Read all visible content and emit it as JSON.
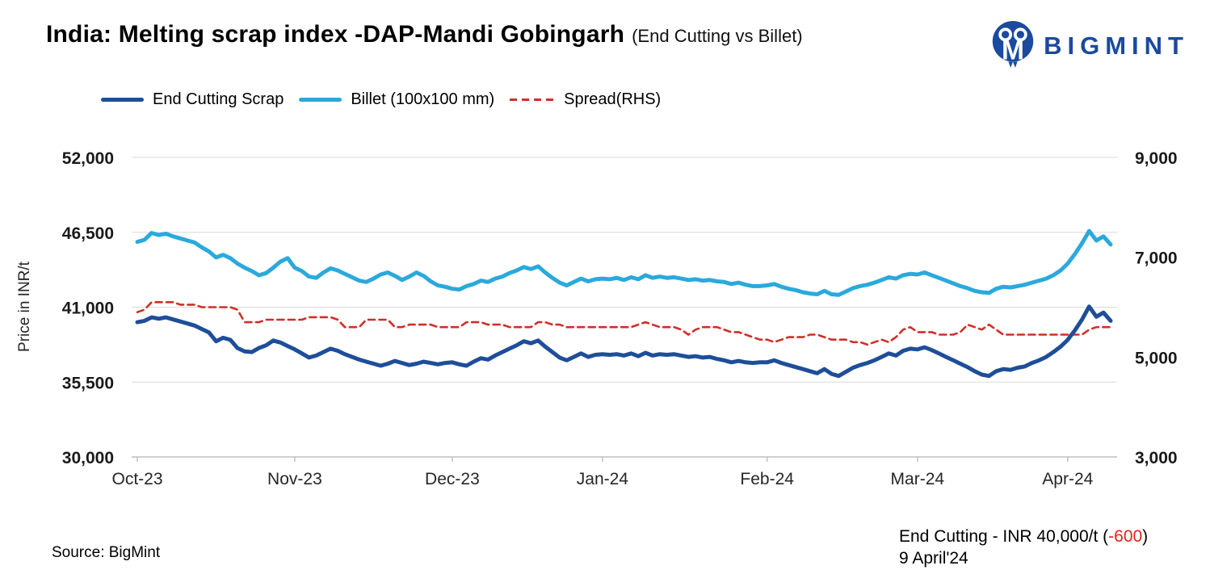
{
  "header": {
    "title": "India: Melting scrap index -DAP-Mandi Gobingarh",
    "subtitle": "(End Cutting vs Billet)",
    "brand": "BIGMINT"
  },
  "footer": {
    "source": "Source: BigMint",
    "annotation": {
      "prefix": "End Cutting - INR 40,000/t (",
      "change": "-600",
      "suffix": ")",
      "date": "9 April'24"
    }
  },
  "colors": {
    "end_cutting": "#1e4e99",
    "billet": "#2ba9dc",
    "spread": "#d02f28",
    "brand_blue": "#1b4a9e",
    "negative_red": "#e0241c",
    "gridline": "#d9d9d9",
    "axis_line": "#bfbfbf"
  },
  "chart_data": {
    "type": "line",
    "title": "India: Melting scrap index -DAP-Mandi Gobingarh (End Cutting vs Billet)",
    "legend_position": "top",
    "grid": "horizontal",
    "y_left": {
      "label": "Price in INR/t",
      "min": 30000,
      "max": 52000,
      "ticks": [
        {
          "v": 52000,
          "t": "52,000"
        },
        {
          "v": 46500,
          "t": "46,500"
        },
        {
          "v": 41000,
          "t": "41,000"
        },
        {
          "v": 35500,
          "t": "35,500"
        },
        {
          "v": 30000,
          "t": "30,000"
        }
      ]
    },
    "y_right": {
      "min": 3000,
      "max": 9000,
      "ticks": [
        {
          "v": 9000,
          "t": "9,000"
        },
        {
          "v": 7000,
          "t": "7,000"
        },
        {
          "v": 5000,
          "t": "5,000"
        },
        {
          "v": 3000,
          "t": "3,000"
        }
      ]
    },
    "x_ticks": [
      {
        "i": 0,
        "t": "Oct-23"
      },
      {
        "i": 22,
        "t": "Nov-23"
      },
      {
        "i": 44,
        "t": "Dec-23"
      },
      {
        "i": 65,
        "t": "Jan-24"
      },
      {
        "i": 88,
        "t": "Feb-24"
      },
      {
        "i": 109,
        "t": "Mar-24"
      },
      {
        "i": 130,
        "t": "Apr-24"
      }
    ],
    "series": [
      {
        "name": "End Cutting Scrap",
        "axis": "left",
        "color": "#1e4e99",
        "style": "solid",
        "width": 5,
        "values": [
          39900,
          40000,
          40250,
          40150,
          40250,
          40100,
          39950,
          39800,
          39650,
          39400,
          39150,
          38500,
          38750,
          38600,
          38000,
          37750,
          37700,
          38000,
          38200,
          38550,
          38400,
          38150,
          37900,
          37600,
          37300,
          37450,
          37700,
          37950,
          37800,
          37550,
          37350,
          37150,
          37000,
          36850,
          36700,
          36850,
          37050,
          36900,
          36750,
          36850,
          37000,
          36900,
          36800,
          36900,
          36950,
          36800,
          36700,
          37000,
          37250,
          37150,
          37450,
          37700,
          37950,
          38200,
          38500,
          38350,
          38550,
          38100,
          37700,
          37300,
          37100,
          37350,
          37600,
          37350,
          37500,
          37550,
          37500,
          37550,
          37450,
          37600,
          37400,
          37650,
          37450,
          37550,
          37500,
          37550,
          37450,
          37350,
          37400,
          37300,
          37350,
          37200,
          37100,
          36950,
          37050,
          36950,
          36900,
          36950,
          36950,
          37100,
          36900,
          36750,
          36600,
          36450,
          36300,
          36150,
          36450,
          36100,
          35950,
          36250,
          36550,
          36750,
          36900,
          37100,
          37350,
          37600,
          37450,
          37800,
          37950,
          37900,
          38050,
          37850,
          37600,
          37350,
          37100,
          36850,
          36600,
          36300,
          36050,
          35950,
          36300,
          36450,
          36400,
          36550,
          36650,
          36900,
          37100,
          37350,
          37700,
          38100,
          38600,
          39300,
          40100,
          41050,
          40300,
          40600,
          40000
        ]
      },
      {
        "name": "Billet (100x100 mm)",
        "axis": "left",
        "color": "#2ba9dc",
        "style": "solid",
        "width": 5,
        "values": [
          45800,
          45950,
          46450,
          46300,
          46400,
          46200,
          46050,
          45900,
          45750,
          45400,
          45100,
          44650,
          44850,
          44600,
          44200,
          43900,
          43650,
          43350,
          43500,
          43900,
          44350,
          44600,
          43900,
          43650,
          43250,
          43150,
          43550,
          43850,
          43700,
          43450,
          43200,
          42950,
          42850,
          43100,
          43400,
          43550,
          43300,
          43000,
          43250,
          43550,
          43300,
          42900,
          42600,
          42500,
          42350,
          42300,
          42550,
          42700,
          42950,
          42850,
          43100,
          43250,
          43500,
          43700,
          43950,
          43800,
          44000,
          43550,
          43150,
          42800,
          42600,
          42850,
          43100,
          42900,
          43050,
          43100,
          43050,
          43150,
          43000,
          43200,
          43050,
          43350,
          43150,
          43250,
          43150,
          43200,
          43100,
          43000,
          43050,
          42950,
          43000,
          42900,
          42850,
          42700,
          42800,
          42650,
          42550,
          42550,
          42600,
          42700,
          42500,
          42350,
          42250,
          42100,
          42000,
          41950,
          42200,
          41950,
          41900,
          42150,
          42400,
          42550,
          42650,
          42800,
          43000,
          43200,
          43100,
          43350,
          43450,
          43400,
          43550,
          43350,
          43150,
          42950,
          42750,
          42550,
          42400,
          42200,
          42100,
          42050,
          42350,
          42500,
          42450,
          42550,
          42650,
          42800,
          42950,
          43100,
          43350,
          43700,
          44200,
          44900,
          45700,
          46600,
          45900,
          46200,
          45600
        ]
      },
      {
        "name": "Spread(RHS)",
        "axis": "right",
        "color": "#d02f28",
        "style": "dashed",
        "width": 2.6,
        "dash": "8 5.5",
        "values": [
          5900,
          5950,
          6100,
          6100,
          6100,
          6100,
          6050,
          6050,
          6050,
          6000,
          6000,
          6000,
          6000,
          6000,
          5950,
          5700,
          5700,
          5700,
          5750,
          5750,
          5750,
          5750,
          5750,
          5750,
          5800,
          5800,
          5800,
          5800,
          5750,
          5600,
          5600,
          5600,
          5750,
          5750,
          5750,
          5750,
          5600,
          5600,
          5650,
          5650,
          5650,
          5650,
          5600,
          5600,
          5600,
          5600,
          5700,
          5700,
          5700,
          5650,
          5650,
          5650,
          5600,
          5600,
          5600,
          5600,
          5700,
          5700,
          5650,
          5650,
          5600,
          5600,
          5600,
          5600,
          5600,
          5600,
          5600,
          5600,
          5600,
          5600,
          5650,
          5700,
          5650,
          5600,
          5600,
          5600,
          5550,
          5450,
          5550,
          5600,
          5600,
          5600,
          5550,
          5500,
          5500,
          5450,
          5400,
          5350,
          5350,
          5300,
          5350,
          5400,
          5400,
          5400,
          5450,
          5450,
          5400,
          5350,
          5350,
          5350,
          5300,
          5300,
          5250,
          5300,
          5350,
          5300,
          5400,
          5550,
          5600,
          5500,
          5500,
          5500,
          5450,
          5450,
          5450,
          5500,
          5650,
          5600,
          5550,
          5650,
          5550,
          5450,
          5450,
          5450,
          5450,
          5450,
          5450,
          5450,
          5450,
          5450,
          5450,
          5450,
          5450,
          5550,
          5600,
          5600,
          5600
        ]
      }
    ]
  }
}
